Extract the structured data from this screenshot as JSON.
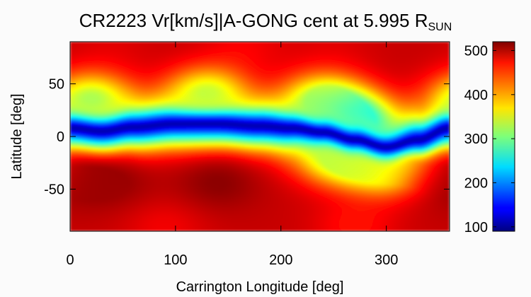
{
  "chart_data": {
    "type": "heatmap",
    "title": {
      "main": "CR2223 Vr[km/s]|A-GONG cent at 5.995 R",
      "subscript": "SUN"
    },
    "xlabel": "Carrington Longitude [deg]",
    "ylabel": "Latitude [deg]",
    "xlim": [
      0,
      360
    ],
    "ylim": [
      -90,
      90
    ],
    "x_ticks": [
      0,
      100,
      200,
      300
    ],
    "y_ticks": [
      -50,
      0,
      50
    ],
    "colorbar": {
      "range": [
        90,
        520
      ],
      "ticks": [
        100,
        200,
        300,
        400,
        500
      ],
      "colormap": "jet"
    },
    "z_unit": "km/s",
    "grid": false,
    "neutral_line": [
      {
        "lon": 0,
        "lat": 8
      },
      {
        "lon": 30,
        "lat": 5
      },
      {
        "lon": 60,
        "lat": 9
      },
      {
        "lon": 100,
        "lat": 12
      },
      {
        "lon": 140,
        "lat": 12
      },
      {
        "lon": 180,
        "lat": 10
      },
      {
        "lon": 210,
        "lat": 8
      },
      {
        "lon": 240,
        "lat": 4
      },
      {
        "lon": 270,
        "lat": -3
      },
      {
        "lon": 300,
        "lat": -10
      },
      {
        "lon": 330,
        "lat": -3
      },
      {
        "lon": 360,
        "lat": 8
      }
    ],
    "features": [
      {
        "lon": 40,
        "lat": -45,
        "value": 510
      },
      {
        "lon": 140,
        "lat": -45,
        "value": 515
      },
      {
        "lon": 355,
        "lat": -45,
        "value": 505
      },
      {
        "lon": 40,
        "lat": 85,
        "value": 480
      },
      {
        "lon": 165,
        "lat": 85,
        "value": 470
      },
      {
        "lon": 250,
        "lat": 85,
        "value": 480
      },
      {
        "lon": 90,
        "lat": -85,
        "value": 470
      },
      {
        "lon": 270,
        "lat": -85,
        "value": 460
      },
      {
        "lon": 255,
        "lat": -20,
        "value": 335
      },
      {
        "lon": 300,
        "lat": -30,
        "value": 345
      },
      {
        "lon": 270,
        "lat": 15,
        "value": 250
      },
      {
        "lon": 20,
        "lat": 35,
        "value": 320
      },
      {
        "lon": 130,
        "lat": 40,
        "value": 330
      },
      {
        "lon": 240,
        "lat": 35,
        "value": 325
      }
    ]
  }
}
